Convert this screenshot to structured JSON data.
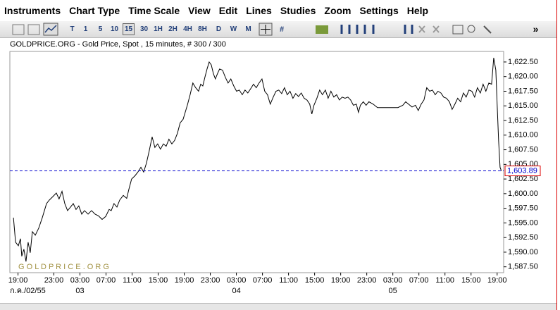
{
  "menu": [
    "Instruments",
    "Chart Type",
    "Time Scale",
    "View",
    "Edit",
    "Lines",
    "Studies",
    "Zoom",
    "Settings",
    "Help"
  ],
  "toolbar": {
    "buttons": [
      "T",
      "1",
      "5",
      "10",
      "15",
      "30",
      "1H",
      "2H",
      "4H",
      "8H",
      "D",
      "W",
      "M"
    ],
    "selected": "15",
    "more": "»"
  },
  "chart_data": {
    "type": "line",
    "title": "GOLDPRICE.ORG - Gold Price, Spot , 15 minutes, # 300 / 300",
    "watermark": "G O L D P R I C E . O R G",
    "color": "#000000",
    "x": [
      2.2,
      3.5,
      5.2,
      6.5,
      7.3,
      8.6,
      9.9,
      11.2,
      12.5,
      13.8,
      15.6,
      17.7,
      19.9,
      21.2,
      22.5,
      24.2,
      26.4,
      28.5,
      30.2,
      32.0,
      33.7,
      35.4,
      37.2,
      38.9,
      40.6,
      42.3,
      44.1,
      45.8,
      48.0,
      50.1,
      52.3,
      54.4,
      56.6,
      58.8,
      60.9,
      62.2,
      63.9,
      65.7,
      67.4,
      69.6,
      71.7,
      73.0,
      74.7,
      76.9,
      78.6,
      80.4,
      82.1,
      83.8,
      85.5,
      87.3,
      89.0,
      90.7,
      92.4,
      94.2,
      95.9,
      97.6,
      99.4,
      101.1,
      102.8,
      104.5,
      106.3,
      107.6,
      108.9,
      110.6,
      112.3,
      114.0,
      115.8,
      117.1,
      118.4,
      119.7,
      121.0,
      122.3,
      123.6,
      124.9,
      126.1,
      127.4,
      128.7,
      130.5,
      132.2,
      133.9,
      135.6,
      137.4,
      139.1,
      140.8,
      142.6,
      144.3,
      146.0,
      147.7,
      149.5,
      151.2,
      152.9,
      154.7,
      156.4,
      158.1,
      159.8,
      161.6,
      163.3,
      165.0,
      166.8,
      168.5,
      170.2,
      171.9,
      173.7,
      175.4,
      177.1,
      178.8,
      180.6,
      182.3,
      184.0,
      185.3,
      186.6,
      188.4,
      190.1,
      191.8,
      193.6,
      195.3,
      197.0,
      198.8,
      200.5,
      202.2,
      203.9,
      205.7,
      207.4,
      209.1,
      210.8,
      212.6,
      213.9,
      215.1,
      216.9,
      218.6,
      220.3,
      222.9,
      225.6,
      233.8,
      238.1,
      241.1,
      242.9,
      244.6,
      246.8,
      248.9,
      250.6,
      252.4,
      254.1,
      255.8,
      257.6,
      259.3,
      261.0,
      262.7,
      264.5,
      266.2,
      267.9,
      269.7,
      271.4,
      273.1,
      274.8,
      276.6,
      278.3,
      280.0,
      281.7,
      283.5,
      285.2,
      286.9,
      288.7,
      290.4,
      292.1,
      293.9,
      295.6,
      296.9,
      298.2,
      299.0,
      299.9,
      300.8,
      301.6
    ],
    "values": [
      1595.9,
      1591.7,
      1591.1,
      1592.3,
      1589.3,
      1590.5,
      1588.4,
      1591.7,
      1589.9,
      1593.5,
      1592.9,
      1594.1,
      1595.9,
      1597.1,
      1598.3,
      1598.9,
      1599.5,
      1600.1,
      1599.1,
      1600.4,
      1598.3,
      1597.1,
      1597.7,
      1598.3,
      1597.3,
      1597.9,
      1596.5,
      1597.1,
      1596.5,
      1597.1,
      1596.5,
      1596.2,
      1595.6,
      1596.1,
      1597.3,
      1597.1,
      1598.3,
      1597.7,
      1598.9,
      1599.7,
      1599.2,
      1600.7,
      1602.5,
      1603.1,
      1603.7,
      1604.5,
      1603.7,
      1605.2,
      1607.3,
      1609.7,
      1607.9,
      1608.5,
      1607.6,
      1608.5,
      1608.1,
      1609.3,
      1608.5,
      1609.1,
      1610.3,
      1612.1,
      1612.7,
      1613.9,
      1615.1,
      1616.9,
      1618.9,
      1618.1,
      1617.5,
      1618.7,
      1618.4,
      1619.9,
      1621.3,
      1622.5,
      1622.0,
      1620.5,
      1619.6,
      1620.5,
      1621.3,
      1621.1,
      1619.9,
      1618.9,
      1619.6,
      1618.4,
      1617.5,
      1617.7,
      1616.9,
      1617.7,
      1617.2,
      1617.9,
      1618.7,
      1618.1,
      1618.9,
      1619.6,
      1617.5,
      1616.9,
      1615.3,
      1616.5,
      1617.5,
      1617.7,
      1617.1,
      1618.1,
      1616.9,
      1617.5,
      1616.3,
      1617.1,
      1616.6,
      1617.2,
      1616.3,
      1616.0,
      1615.3,
      1613.6,
      1615.1,
      1616.3,
      1617.7,
      1616.9,
      1617.7,
      1616.3,
      1617.5,
      1616.5,
      1616.9,
      1616.0,
      1616.5,
      1616.3,
      1616.5,
      1616.0,
      1615.1,
      1615.3,
      1613.9,
      1615.1,
      1615.7,
      1615.1,
      1615.7,
      1615.3,
      1614.7,
      1614.7,
      1614.7,
      1615.1,
      1615.7,
      1615.3,
      1614.8,
      1615.1,
      1614.2,
      1615.3,
      1616.0,
      1618.1,
      1617.5,
      1617.7,
      1616.9,
      1617.5,
      1617.2,
      1616.5,
      1616.3,
      1615.7,
      1614.4,
      1615.3,
      1616.3,
      1615.7,
      1617.2,
      1616.5,
      1617.7,
      1617.5,
      1616.5,
      1618.1,
      1617.2,
      1618.7,
      1617.5,
      1618.9,
      1618.7,
      1623.2,
      1621.1,
      1615.3,
      1609.1,
      1604.5,
      1603.89
    ],
    "last_price": {
      "value": 1603.89,
      "label": "1,603.89"
    },
    "last_price_color": "#0000cc",
    "xlim": [
      0,
      303
    ],
    "ylim": [
      1586.5,
      1624.3
    ],
    "yticks": [
      {
        "value": 1587.5,
        "label": "1,587.50"
      },
      {
        "value": 1590,
        "label": "1,590.00"
      },
      {
        "value": 1592.5,
        "label": "1,592.50"
      },
      {
        "value": 1595,
        "label": "1,595.00"
      },
      {
        "value": 1597.5,
        "label": "1,597.50"
      },
      {
        "value": 1600,
        "label": "1,600.00"
      },
      {
        "value": 1602.5,
        "label": "1,602.50"
      },
      {
        "value": 1605,
        "label": "1,605.00"
      },
      {
        "value": 1607.5,
        "label": "1,607.50"
      },
      {
        "value": 1610,
        "label": "1,610.00"
      },
      {
        "value": 1612.5,
        "label": "1,612.50"
      },
      {
        "value": 1615,
        "label": "1,615.00"
      },
      {
        "value": 1617.5,
        "label": "1,617.50"
      },
      {
        "value": 1620,
        "label": "1,620.00"
      },
      {
        "value": 1622.5,
        "label": "1,622.50"
      }
    ],
    "xticks": [
      {
        "value": 5,
        "label": "19:00"
      },
      {
        "value": 27,
        "label": "23:00"
      },
      {
        "value": 43,
        "label": "03:00"
      },
      {
        "value": 59,
        "label": "07:00"
      },
      {
        "value": 75,
        "label": "11:00"
      },
      {
        "value": 91,
        "label": "15:00"
      },
      {
        "value": 107,
        "label": "19:00"
      },
      {
        "value": 123,
        "label": "23:00"
      },
      {
        "value": 139,
        "label": "03:00"
      },
      {
        "value": 155,
        "label": "07:00"
      },
      {
        "value": 171,
        "label": "11:00"
      },
      {
        "value": 187,
        "label": "15:00"
      },
      {
        "value": 203,
        "label": "19:00"
      },
      {
        "value": 219,
        "label": "23:00"
      },
      {
        "value": 235,
        "label": "03:00"
      },
      {
        "value": 251,
        "label": "07:00"
      },
      {
        "value": 267,
        "label": "11:00"
      },
      {
        "value": 283,
        "label": "15:00"
      },
      {
        "value": 299,
        "label": "19:00"
      }
    ],
    "date_labels": [
      {
        "value": 5,
        "label": "ก.ค./02/55"
      },
      {
        "value": 43,
        "label": "03"
      },
      {
        "value": 139,
        "label": "04"
      },
      {
        "value": 235,
        "label": "05"
      }
    ]
  }
}
